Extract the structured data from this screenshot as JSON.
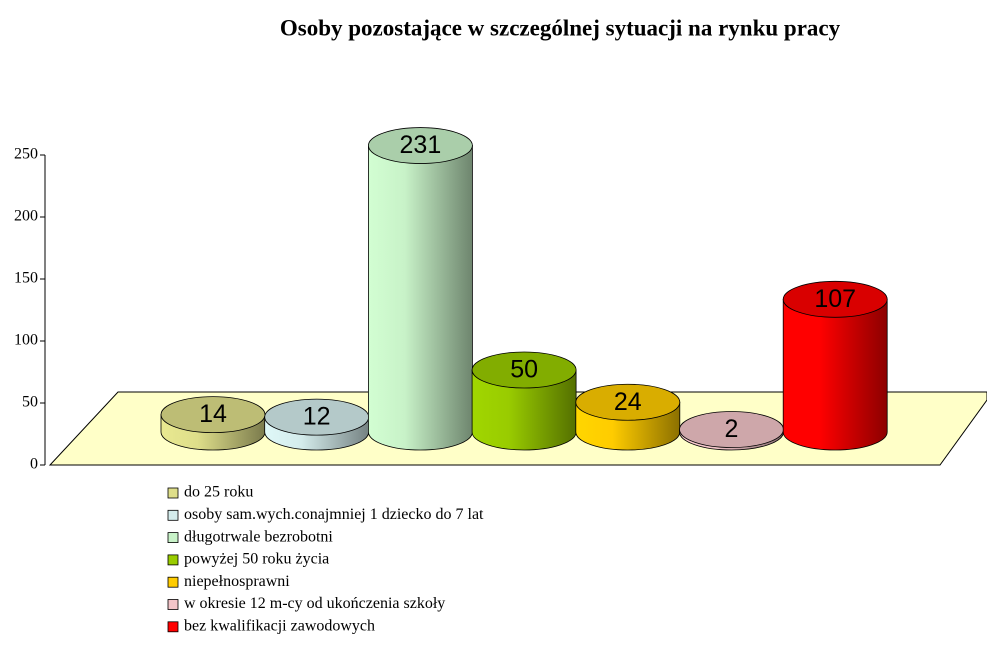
{
  "chart_data": {
    "type": "bar3d",
    "title": "Osoby pozostające w szczególnej sytuacji na rynku pracy",
    "categories": [
      "do 25 roku",
      "osoby sam.wych.conajmniej 1 dziecko do 7 lat",
      "długotrwale bezrobotni",
      "powyżej 50 roku życia",
      "niepełnosprawni",
      "w okresie 12 m-cy od ukończenia szkoły",
      "bez kwalifikacji zawodowych"
    ],
    "values": [
      14,
      12,
      231,
      50,
      24,
      2,
      107
    ],
    "colors": [
      "#dede8a",
      "#d4ecec",
      "#c8f2c8",
      "#99cc00",
      "#ffcc00",
      "#f2c4c8",
      "#ff0000"
    ],
    "ylim": [
      0,
      250
    ],
    "yticks": [
      0,
      50,
      100,
      150,
      200,
      250
    ]
  }
}
